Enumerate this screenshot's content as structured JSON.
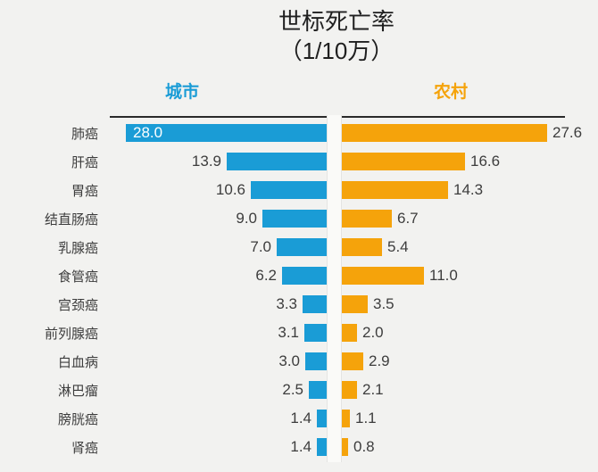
{
  "colors": {
    "background": "#F2F2F0",
    "urban": "#1A9CD6",
    "rural": "#F5A30B",
    "title_text": "#1F1F1F",
    "label_text": "#3D3D3D",
    "axis_line": "#2A2A2A",
    "divider_fill": "#FAFAF8",
    "divider_edge": "#E4E4E2",
    "inside_value_text": "#FFFFFF"
  },
  "chart_data": {
    "type": "bar",
    "variant": "diverging-horizontal",
    "title": "世标死亡率",
    "subtitle": "（1/10万）",
    "categories": [
      "肺癌",
      "肝癌",
      "胃癌",
      "结直肠癌",
      "乳腺癌",
      "食管癌",
      "宫颈癌",
      "前列腺癌",
      "白血病",
      "淋巴瘤",
      "膀胱癌",
      "肾癌"
    ],
    "series": [
      {
        "name": "城市",
        "side": "left",
        "color": "#1A9CD6",
        "values": [
          28.0,
          13.9,
          10.6,
          9.0,
          7.0,
          6.2,
          3.3,
          3.1,
          3.0,
          2.5,
          1.4,
          1.4
        ]
      },
      {
        "name": "农村",
        "side": "right",
        "color": "#F5A30B",
        "values": [
          27.6,
          16.6,
          14.3,
          6.7,
          5.4,
          11.0,
          3.5,
          2.0,
          2.9,
          2.1,
          1.1,
          0.8
        ]
      }
    ],
    "value_decimals": 1,
    "axis_max": 28.0,
    "grid": false,
    "legend_position": "top",
    "value_labels": "shown"
  }
}
